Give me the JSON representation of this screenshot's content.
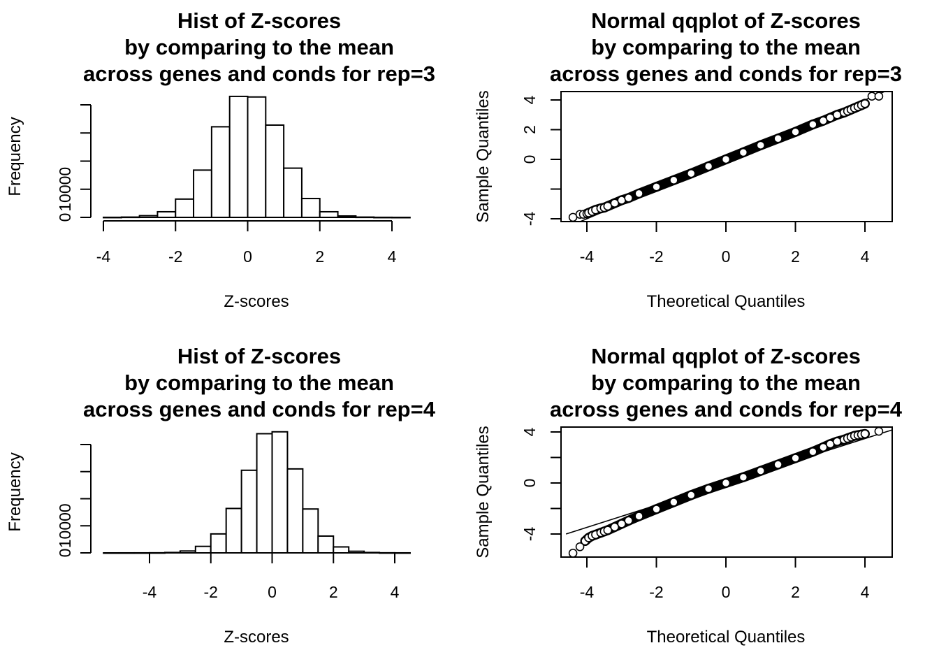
{
  "chart_data": [
    {
      "type": "bar",
      "subtype": "histogram",
      "title": [
        "Hist of Z-scores",
        "by comparing to the mean",
        "across genes and conds for rep=3"
      ],
      "xlabel": "Z-scores",
      "ylabel": "Frequency",
      "bin_width": 0.5,
      "bins": [
        {
          "start": -4.0,
          "end": -3.5,
          "count": 20
        },
        {
          "start": -3.5,
          "end": -3.0,
          "count": 100
        },
        {
          "start": -3.0,
          "end": -2.5,
          "count": 600
        },
        {
          "start": -2.5,
          "end": -2.0,
          "count": 2000
        },
        {
          "start": -2.0,
          "end": -1.5,
          "count": 6500
        },
        {
          "start": -1.5,
          "end": -1.0,
          "count": 16800
        },
        {
          "start": -1.0,
          "end": -0.5,
          "count": 32200
        },
        {
          "start": -0.5,
          "end": 0.0,
          "count": 43000
        },
        {
          "start": 0.0,
          "end": 0.5,
          "count": 42800
        },
        {
          "start": 0.5,
          "end": 1.0,
          "count": 32800
        },
        {
          "start": 1.0,
          "end": 1.5,
          "count": 17500
        },
        {
          "start": 1.5,
          "end": 2.0,
          "count": 6700
        },
        {
          "start": 2.0,
          "end": 2.5,
          "count": 2000
        },
        {
          "start": 2.5,
          "end": 3.0,
          "count": 500
        },
        {
          "start": 3.0,
          "end": 3.5,
          "count": 100
        },
        {
          "start": 3.5,
          "end": 4.0,
          "count": 20
        },
        {
          "start": 4.0,
          "end": 4.5,
          "count": 5
        }
      ],
      "xlim": [
        -4,
        4.5
      ],
      "ylim": [
        0,
        40000
      ],
      "xticks": [
        -4,
        -2,
        0,
        2,
        4
      ],
      "yticks": [
        0,
        10000,
        20000,
        30000,
        40000
      ],
      "yticklabels": [
        "0",
        "10000",
        "",
        "",
        ""
      ]
    },
    {
      "type": "scatter",
      "subtype": "normal-qq",
      "title": [
        "Normal qqplot of Z-scores",
        "by comparing to the mean",
        "across genes and conds for rep=3"
      ],
      "xlabel": "Theoretical Quantiles",
      "ylabel": "Sample Quantiles",
      "xlim": [
        -4.6,
        4.8
      ],
      "ylim": [
        -4.2,
        4.5
      ],
      "xticks": [
        -4,
        -2,
        0,
        2,
        4
      ],
      "yticks": [
        -4,
        -2,
        0,
        2,
        4
      ],
      "yticklabels": [
        "-4",
        "",
        "0",
        "2",
        "4"
      ],
      "reference_line": {
        "intercept": 0,
        "slope": 1.0
      },
      "points": {
        "x": [
          -4.4,
          -4.2,
          -4.1,
          -4.0,
          -3.95,
          -3.85,
          -3.75,
          -3.6,
          -3.5,
          -3.4,
          -3.2,
          -3.0,
          -2.8,
          -2.5,
          -2.0,
          -1.5,
          -1.0,
          -0.5,
          0,
          0.5,
          1.0,
          1.5,
          2.0,
          2.5,
          2.8,
          3.0,
          3.2,
          3.4,
          3.5,
          3.6,
          3.7,
          3.8,
          3.9,
          4.0,
          4.2,
          4.4
        ],
        "y": [
          -3.9,
          -3.7,
          -3.7,
          -3.65,
          -3.6,
          -3.5,
          -3.4,
          -3.3,
          -3.25,
          -3.15,
          -2.95,
          -2.75,
          -2.6,
          -2.3,
          -1.85,
          -1.4,
          -0.95,
          -0.47,
          0,
          0.47,
          0.95,
          1.4,
          1.85,
          2.35,
          2.6,
          2.8,
          3.0,
          3.15,
          3.25,
          3.35,
          3.45,
          3.55,
          3.65,
          3.75,
          4.25,
          4.25
        ]
      }
    },
    {
      "type": "bar",
      "subtype": "histogram",
      "title": [
        "Hist of Z-scores",
        "by comparing to the mean",
        "across genes and conds for rep=4"
      ],
      "xlabel": "Z-scores",
      "ylabel": "Frequency",
      "bin_width": 0.5,
      "bins": [
        {
          "start": -5.5,
          "end": -5.0,
          "count": 2
        },
        {
          "start": -5.0,
          "end": -4.5,
          "count": 5
        },
        {
          "start": -4.5,
          "end": -4.0,
          "count": 10
        },
        {
          "start": -4.0,
          "end": -3.5,
          "count": 30
        },
        {
          "start": -3.5,
          "end": -3.0,
          "count": 150
        },
        {
          "start": -3.0,
          "end": -2.5,
          "count": 700
        },
        {
          "start": -2.5,
          "end": -2.0,
          "count": 2400
        },
        {
          "start": -2.0,
          "end": -1.5,
          "count": 7000
        },
        {
          "start": -1.5,
          "end": -1.0,
          "count": 16400
        },
        {
          "start": -1.0,
          "end": -0.5,
          "count": 30500
        },
        {
          "start": -0.5,
          "end": 0.0,
          "count": 44000
        },
        {
          "start": 0.0,
          "end": 0.5,
          "count": 44700
        },
        {
          "start": 0.5,
          "end": 1.0,
          "count": 31000
        },
        {
          "start": 1.0,
          "end": 1.5,
          "count": 16200
        },
        {
          "start": 1.5,
          "end": 2.0,
          "count": 6200
        },
        {
          "start": 2.0,
          "end": 2.5,
          "count": 2200
        },
        {
          "start": 2.5,
          "end": 3.0,
          "count": 600
        },
        {
          "start": 3.0,
          "end": 3.5,
          "count": 150
        },
        {
          "start": 3.5,
          "end": 4.0,
          "count": 30
        },
        {
          "start": 4.0,
          "end": 4.5,
          "count": 10
        }
      ],
      "xlim": [
        -5.5,
        4.5
      ],
      "ylim": [
        0,
        40000
      ],
      "xticks": [
        -4,
        -2,
        0,
        2,
        4
      ],
      "yticks": [
        0,
        10000,
        20000,
        30000,
        40000
      ],
      "yticklabels": [
        "0",
        "10000",
        "",
        "",
        ""
      ]
    },
    {
      "type": "scatter",
      "subtype": "normal-qq",
      "title": [
        "Normal qqplot of Z-scores",
        "by comparing to the mean",
        "across genes and conds for rep=4"
      ],
      "xlabel": "Theoretical Quantiles",
      "ylabel": "Sample Quantiles",
      "xlim": [
        -4.6,
        4.8
      ],
      "ylim": [
        -5.8,
        4.4
      ],
      "xticks": [
        -4,
        -2,
        0,
        2,
        4
      ],
      "yticks": [
        -4,
        -2,
        0,
        2,
        4
      ],
      "yticklabels": [
        "-4",
        "",
        "0",
        "",
        "4"
      ],
      "reference_line": {
        "intercept": 0,
        "slope": 0.87
      },
      "points": {
        "x": [
          -4.4,
          -4.2,
          -4.05,
          -3.95,
          -3.85,
          -3.75,
          -3.6,
          -3.5,
          -3.4,
          -3.2,
          -3.0,
          -2.8,
          -2.5,
          -2.0,
          -1.5,
          -1.0,
          -0.5,
          0,
          0.5,
          1.0,
          1.5,
          2.0,
          2.5,
          2.8,
          3.0,
          3.2,
          3.4,
          3.5,
          3.6,
          3.7,
          3.8,
          3.9,
          4.0,
          4.4
        ],
        "y": [
          -5.5,
          -5.0,
          -4.55,
          -4.3,
          -4.15,
          -4.05,
          -3.9,
          -3.8,
          -3.7,
          -3.45,
          -3.2,
          -2.95,
          -2.6,
          -2.05,
          -1.5,
          -0.95,
          -0.45,
          0,
          0.45,
          0.95,
          1.45,
          1.95,
          2.45,
          2.8,
          3.05,
          3.25,
          3.4,
          3.5,
          3.6,
          3.7,
          3.75,
          3.8,
          3.85,
          4.05
        ]
      }
    }
  ]
}
